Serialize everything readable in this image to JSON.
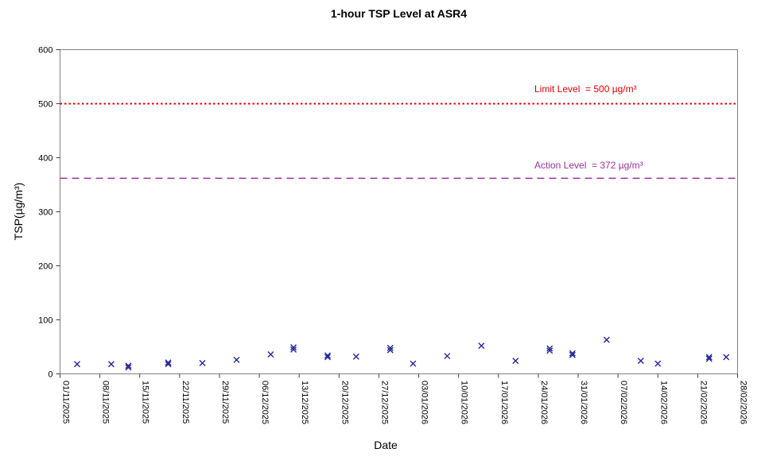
{
  "chart_data": {
    "type": "scatter",
    "title": "1-hour TSP Level at ASR4",
    "xlabel": "Date",
    "ylabel": "TSP(µg/m³)",
    "ylim": [
      0,
      600
    ],
    "y_ticks": [
      0,
      100,
      200,
      300,
      400,
      500,
      600
    ],
    "x_tick_labels": [
      "01/11/2025",
      "08/11/2025",
      "15/11/2025",
      "22/11/2025",
      "29/11/2025",
      "06/12/2025",
      "13/12/2025",
      "20/12/2025",
      "27/12/2025",
      "03/01/2026",
      "10/01/2026",
      "17/01/2026",
      "24/01/2026",
      "31/01/2026",
      "07/02/2026",
      "14/02/2026",
      "21/02/2026",
      "28/02/2026"
    ],
    "x_tick_interval_days": 7,
    "grid": false,
    "legend": "none",
    "background": "#ffffff",
    "frame_color": "#808080",
    "tick_color": "#404040",
    "axis_text_color": "#000000",
    "reference_lines": [
      {
        "name": "limit-level",
        "label": "Limit Level  = 500 µg/m³",
        "value": 500,
        "color": "#e00000",
        "style": "dotted"
      },
      {
        "name": "action-level",
        "label": "Action Level  = 372 µg/m³",
        "value": 372,
        "y_render": 362,
        "color": "#993399",
        "style": "dashed"
      }
    ],
    "series": [
      {
        "name": "1-hour TSP level",
        "marker": "x",
        "color": "#26269b",
        "points": [
          {
            "date": "04/11/2025",
            "day": 3,
            "value": 18
          },
          {
            "date": "10/11/2025",
            "day": 9,
            "value": 18
          },
          {
            "date": "13/11/2025",
            "day": 12,
            "value": 15
          },
          {
            "date": "13/11/2025",
            "day": 12,
            "value": 12
          },
          {
            "date": "20/11/2025",
            "day": 19,
            "value": 21
          },
          {
            "date": "20/11/2025",
            "day": 19,
            "value": 18
          },
          {
            "date": "26/11/2025",
            "day": 25,
            "value": 20
          },
          {
            "date": "02/12/2025",
            "day": 31,
            "value": 26
          },
          {
            "date": "08/12/2025",
            "day": 37,
            "value": 36
          },
          {
            "date": "12/12/2025",
            "day": 41,
            "value": 49
          },
          {
            "date": "12/12/2025",
            "day": 41,
            "value": 45
          },
          {
            "date": "18/12/2025",
            "day": 47,
            "value": 34
          },
          {
            "date": "18/12/2025",
            "day": 47,
            "value": 31
          },
          {
            "date": "23/12/2025",
            "day": 52,
            "value": 32
          },
          {
            "date": "29/12/2025",
            "day": 58,
            "value": 48
          },
          {
            "date": "29/12/2025",
            "day": 58,
            "value": 44
          },
          {
            "date": "02/01/2026",
            "day": 62,
            "value": 19
          },
          {
            "date": "08/01/2026",
            "day": 68,
            "value": 33
          },
          {
            "date": "14/01/2026",
            "day": 74,
            "value": 52
          },
          {
            "date": "20/01/2026",
            "day": 80,
            "value": 24
          },
          {
            "date": "26/01/2026",
            "day": 86,
            "value": 47
          },
          {
            "date": "26/01/2026",
            "day": 86,
            "value": 43
          },
          {
            "date": "30/01/2026",
            "day": 90,
            "value": 38
          },
          {
            "date": "30/01/2026",
            "day": 90,
            "value": 35
          },
          {
            "date": "05/02/2026",
            "day": 96,
            "value": 63
          },
          {
            "date": "11/02/2026",
            "day": 102,
            "value": 24
          },
          {
            "date": "14/02/2026",
            "day": 105,
            "value": 19
          },
          {
            "date": "23/02/2026",
            "day": 114,
            "value": 31
          },
          {
            "date": "23/02/2026",
            "day": 114,
            "value": 28
          },
          {
            "date": "26/02/2026",
            "day": 117,
            "value": 31
          }
        ]
      }
    ]
  }
}
